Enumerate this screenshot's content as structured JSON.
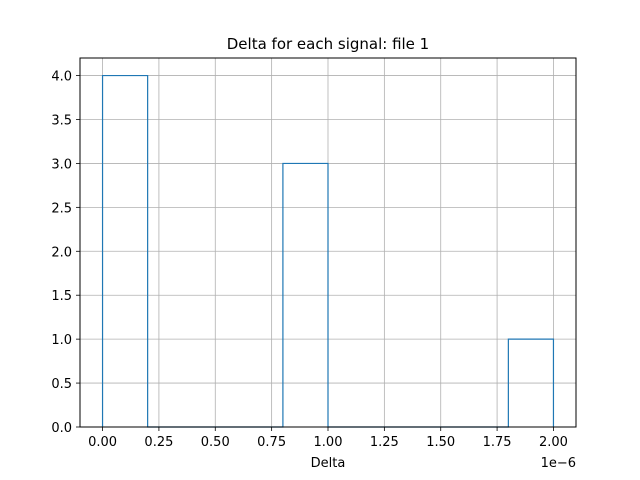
{
  "chart_data": {
    "type": "bar",
    "title": "Delta for each signal: file 1",
    "xlabel": "Delta",
    "ylabel": "",
    "x_offset_text": "1e−6",
    "x_scale_exponent": -6,
    "xlim": [
      -0.1,
      2.1
    ],
    "ylim": [
      0,
      4.2
    ],
    "grid": true,
    "histtype": "step",
    "color": "#1f77b4",
    "x_ticks": [
      0.0,
      0.25,
      0.5,
      0.75,
      1.0,
      1.25,
      1.5,
      1.75,
      2.0
    ],
    "x_tick_labels": [
      "0.00",
      "0.25",
      "0.50",
      "0.75",
      "1.00",
      "1.25",
      "1.50",
      "1.75",
      "2.00"
    ],
    "y_ticks": [
      0.0,
      0.5,
      1.0,
      1.5,
      2.0,
      2.5,
      3.0,
      3.5,
      4.0
    ],
    "y_tick_labels": [
      "0.0",
      "0.5",
      "1.0",
      "1.5",
      "2.0",
      "2.5",
      "3.0",
      "3.5",
      "4.0"
    ],
    "bins": [
      {
        "start": 0.0,
        "end": 0.2,
        "value": 4
      },
      {
        "start": 0.2,
        "end": 0.4,
        "value": 0
      },
      {
        "start": 0.4,
        "end": 0.6,
        "value": 0
      },
      {
        "start": 0.6,
        "end": 0.8,
        "value": 0
      },
      {
        "start": 0.8,
        "end": 1.0,
        "value": 3
      },
      {
        "start": 1.0,
        "end": 1.2,
        "value": 0
      },
      {
        "start": 1.2,
        "end": 1.4,
        "value": 0
      },
      {
        "start": 1.4,
        "end": 1.6,
        "value": 0
      },
      {
        "start": 1.6,
        "end": 1.8,
        "value": 0
      },
      {
        "start": 1.8,
        "end": 2.0,
        "value": 1
      }
    ]
  }
}
